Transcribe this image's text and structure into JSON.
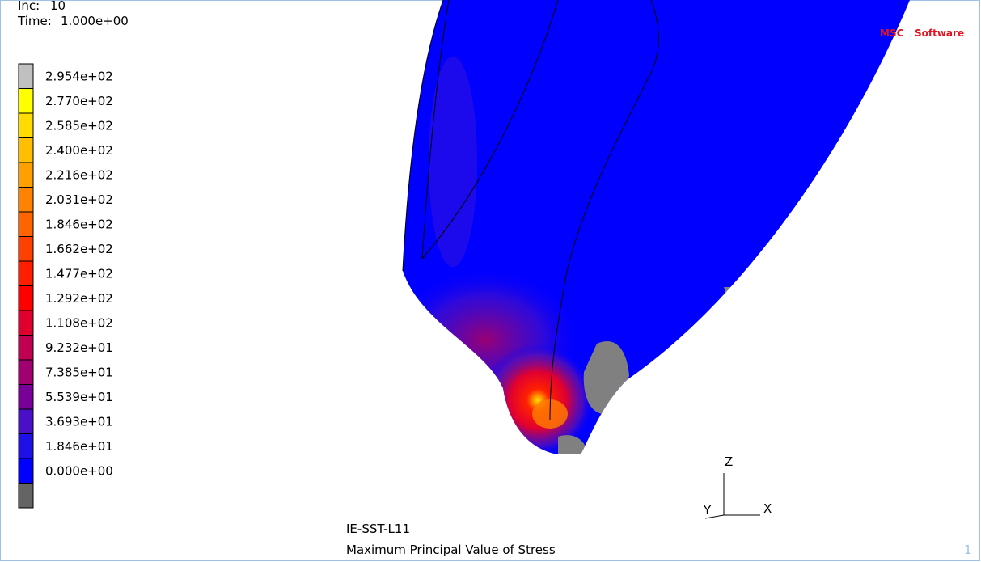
{
  "header": {
    "inc_label": "Inc:",
    "inc": "10",
    "time_label": "Time:",
    "time": "1.000e+00"
  },
  "logo": {
    "left": "MSC",
    "right": "Software"
  },
  "legend": {
    "labels": [
      "2.954e+02",
      "2.770e+02",
      "2.585e+02",
      "2.400e+02",
      "2.216e+02",
      "2.031e+02",
      "1.846e+02",
      "1.662e+02",
      "1.477e+02",
      "1.292e+02",
      "1.108e+02",
      "9.232e+01",
      "7.385e+01",
      "5.539e+01",
      "3.693e+01",
      "1.846e+01",
      "0.000e+00"
    ],
    "colors": [
      "#c0c0c0",
      "#ffff00",
      "#ffdc00",
      "#ffbe00",
      "#ffa000",
      "#ff8200",
      "#ff6400",
      "#ff4100",
      "#ff1e00",
      "#ff0000",
      "#e00030",
      "#c00050",
      "#a00070",
      "#780098",
      "#4a10c8",
      "#2010e8",
      "#0000ff",
      "#646464"
    ]
  },
  "axes": {
    "z": "Z",
    "y": "Y",
    "x": "X"
  },
  "job": "IE-SST-L11",
  "caption": "Maximum Principal Value of Stress",
  "page": "1"
}
